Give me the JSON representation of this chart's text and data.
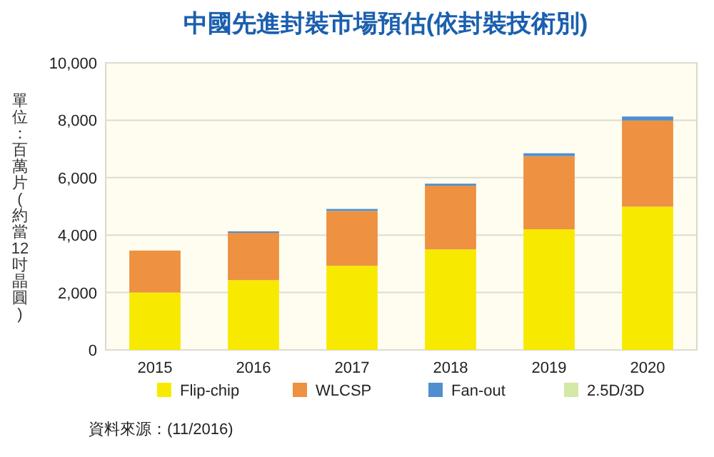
{
  "chart_data": {
    "type": "bar",
    "title": "中國先進封裝市場預估(依封裝技術別)",
    "ylabel": "單位：百萬片(約當12吋晶圓)",
    "categories": [
      "2015",
      "2016",
      "2017",
      "2018",
      "2019",
      "2020"
    ],
    "stacked": true,
    "series": [
      {
        "name": "Flip-chip",
        "color": "#f7ea00",
        "values": [
          2000,
          2430,
          2930,
          3500,
          4200,
          4990
        ]
      },
      {
        "name": "WLCSP",
        "color": "#ee9140",
        "values": [
          1460,
          1650,
          1910,
          2220,
          2550,
          3000
        ]
      },
      {
        "name": "Fan-out",
        "color": "#4f8fcf",
        "values": [
          null,
          50,
          70,
          70,
          100,
          140
        ]
      },
      {
        "name": "2.5D/3D",
        "color": "#d4e8a8",
        "values": [
          null,
          null,
          null,
          null,
          null,
          null
        ]
      }
    ],
    "ylim": [
      0,
      10000
    ],
    "yticks": [
      {
        "value": 0,
        "label": "0"
      },
      {
        "value": 2000,
        "label": "2,000"
      },
      {
        "value": 4000,
        "label": "4,000"
      },
      {
        "value": 6000,
        "label": "6,000"
      },
      {
        "value": 8000,
        "label": "8,000"
      },
      {
        "value": 10000,
        "label": "10,000"
      }
    ],
    "grid": "y",
    "legend": "bottom",
    "annotations": [
      "資料來源：(11/2016)"
    ]
  }
}
